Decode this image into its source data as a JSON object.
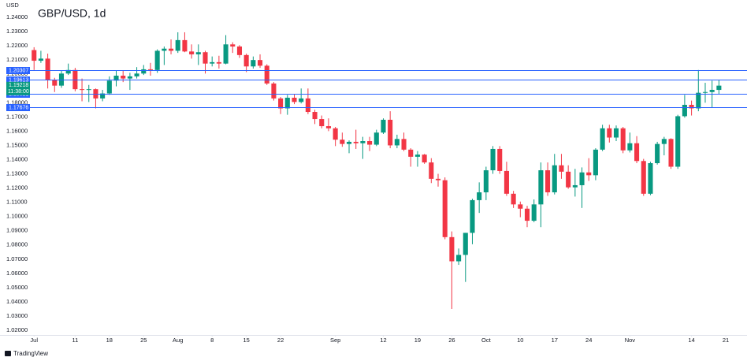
{
  "chart_data": {
    "type": "candlestick",
    "title": "GBP/USD, 1d",
    "y_unit": "USD",
    "brand": "TradingView",
    "up_color": "#089981",
    "down_color": "#f23645",
    "line_color": "#2962ff",
    "ylim": [
      1.0167,
      1.2522
    ],
    "yticks": [
      {
        "value": 1.24,
        "label": "1.24000"
      },
      {
        "value": 1.23,
        "label": "1.23000"
      },
      {
        "value": 1.22,
        "label": "1.22000"
      },
      {
        "value": 1.21,
        "label": "1.21000"
      },
      {
        "value": 1.2,
        "label": "1.20000"
      },
      {
        "value": 1.19,
        "label": "1.19000"
      },
      {
        "value": 1.18,
        "label": "1.18000"
      },
      {
        "value": 1.17,
        "label": "1.17000"
      },
      {
        "value": 1.16,
        "label": "1.16000"
      },
      {
        "value": 1.15,
        "label": "1.15000"
      },
      {
        "value": 1.14,
        "label": "1.14000"
      },
      {
        "value": 1.13,
        "label": "1.13000"
      },
      {
        "value": 1.12,
        "label": "1.12000"
      },
      {
        "value": 1.11,
        "label": "1.11000"
      },
      {
        "value": 1.1,
        "label": "1.10000"
      },
      {
        "value": 1.09,
        "label": "1.09000"
      },
      {
        "value": 1.08,
        "label": "1.08000"
      },
      {
        "value": 1.07,
        "label": "1.07000"
      },
      {
        "value": 1.06,
        "label": "1.06000"
      },
      {
        "value": 1.05,
        "label": "1.05000"
      },
      {
        "value": 1.04,
        "label": "1.04000"
      },
      {
        "value": 1.03,
        "label": "1.03000"
      },
      {
        "value": 1.02,
        "label": "1.02000"
      }
    ],
    "xlim": [
      -0.6,
      104.1
    ],
    "xticks": [
      {
        "value": 0,
        "label": "Jul"
      },
      {
        "value": 6,
        "label": "11"
      },
      {
        "value": 11,
        "label": "18"
      },
      {
        "value": 16,
        "label": "25"
      },
      {
        "value": 21,
        "label": "Aug"
      },
      {
        "value": 26,
        "label": "8"
      },
      {
        "value": 31,
        "label": "15"
      },
      {
        "value": 36,
        "label": "22"
      },
      {
        "value": 44,
        "label": "Sep"
      },
      {
        "value": 51,
        "label": "12"
      },
      {
        "value": 56,
        "label": "19"
      },
      {
        "value": 61,
        "label": "26"
      },
      {
        "value": 66,
        "label": "Oct"
      },
      {
        "value": 71,
        "label": "10"
      },
      {
        "value": 76,
        "label": "17"
      },
      {
        "value": 81,
        "label": "24"
      },
      {
        "value": 87,
        "label": "Nov"
      },
      {
        "value": 96,
        "label": "14"
      },
      {
        "value": 101,
        "label": "21"
      }
    ],
    "price_lines": [
      1.20307,
      1.19613,
      1.18621,
      1.17676
    ],
    "last_price": 1.19218,
    "countdown": "11:38:00",
    "open": [
      1.217,
      1.2095,
      1.211,
      1.196,
      1.192,
      1.2005,
      1.203,
      1.1895,
      1.189,
      1.1895,
      1.183,
      1.1865,
      1.1955,
      1.199,
      1.197,
      1.1985,
      1.2005,
      1.2035,
      1.203,
      1.2165,
      1.218,
      1.2165,
      1.224,
      1.216,
      1.214,
      1.2155,
      1.2075,
      1.2085,
      1.2075,
      1.221,
      1.2195,
      1.2135,
      1.2055,
      1.21,
      1.206,
      1.1935,
      1.183,
      1.176,
      1.1835,
      1.1805,
      1.183,
      1.1735,
      1.1685,
      1.1635,
      1.162,
      1.154,
      1.151,
      1.1525,
      1.1515,
      1.153,
      1.1505,
      1.159,
      1.168,
      1.15,
      1.1545,
      1.147,
      1.142,
      1.1435,
      1.138,
      1.1265,
      1.1255,
      1.0855,
      1.0685,
      1.073,
      1.0885,
      1.1115,
      1.117,
      1.1325,
      1.1475,
      1.132,
      1.116,
      1.1085,
      1.1055,
      1.097,
      1.1085,
      1.1325,
      1.117,
      1.136,
      1.1315,
      1.1205,
      1.122,
      1.131,
      1.129,
      1.147,
      1.162,
      1.1555,
      1.162,
      1.1465,
      1.1515,
      1.139,
      1.116,
      1.1375,
      1.151,
      1.1545,
      1.135,
      1.1705,
      1.1785,
      1.176,
      1.187,
      1.1875,
      1.189
    ],
    "high": [
      1.219,
      1.2165,
      1.2145,
      1.1975,
      1.2025,
      1.2075,
      1.2045,
      1.197,
      1.1925,
      1.19,
      1.189,
      1.1985,
      1.2025,
      1.2025,
      1.201,
      1.205,
      1.2065,
      1.208,
      1.2175,
      1.2195,
      1.2245,
      1.2295,
      1.2295,
      1.221,
      1.221,
      1.2165,
      1.2125,
      1.213,
      1.2275,
      1.2225,
      1.2205,
      1.2145,
      1.2125,
      1.214,
      1.207,
      1.1945,
      1.184,
      1.1855,
      1.186,
      1.19,
      1.19,
      1.175,
      1.171,
      1.169,
      1.163,
      1.159,
      1.1535,
      1.161,
      1.156,
      1.156,
      1.161,
      1.169,
      1.174,
      1.1575,
      1.159,
      1.148,
      1.146,
      1.144,
      1.141,
      1.13,
      1.1275,
      1.0895,
      1.0775,
      1.0885,
      1.1125,
      1.124,
      1.135,
      1.1495,
      1.1495,
      1.1385,
      1.118,
      1.1105,
      1.1075,
      1.112,
      1.138,
      1.138,
      1.144,
      1.144,
      1.136,
      1.1335,
      1.1345,
      1.141,
      1.148,
      1.1645,
      1.1645,
      1.164,
      1.163,
      1.159,
      1.1565,
      1.1405,
      1.1385,
      1.1525,
      1.156,
      1.155,
      1.1715,
      1.1855,
      1.1815,
      1.203,
      1.194,
      1.1955,
      1.196
    ],
    "low": [
      1.203,
      1.208,
      1.19,
      1.1875,
      1.1905,
      1.1995,
      1.188,
      1.181,
      1.1805,
      1.176,
      1.181,
      1.1855,
      1.1915,
      1.1945,
      1.189,
      1.197,
      1.1995,
      1.199,
      1.201,
      1.2065,
      1.214,
      1.215,
      1.2155,
      1.211,
      1.2065,
      1.2005,
      1.2055,
      1.204,
      1.207,
      1.215,
      1.2115,
      1.2015,
      1.204,
      1.2045,
      1.1925,
      1.1815,
      1.172,
      1.1715,
      1.179,
      1.1795,
      1.172,
      1.165,
      1.162,
      1.16,
      1.1495,
      1.149,
      1.1445,
      1.1475,
      1.1405,
      1.146,
      1.1495,
      1.158,
      1.148,
      1.148,
      1.146,
      1.135,
      1.135,
      1.137,
      1.1235,
      1.121,
      1.084,
      1.035,
      1.066,
      1.054,
      1.0805,
      1.1025,
      1.1115,
      1.13,
      1.13,
      1.1145,
      1.106,
      1.0995,
      1.0925,
      1.096,
      1.0925,
      1.1145,
      1.1155,
      1.1265,
      1.1195,
      1.114,
      1.106,
      1.125,
      1.1255,
      1.146,
      1.152,
      1.153,
      1.1445,
      1.145,
      1.1375,
      1.1145,
      1.115,
      1.1365,
      1.143,
      1.1335,
      1.1335,
      1.1695,
      1.171,
      1.174,
      1.18,
      1.1765,
      1.186
    ],
    "close": [
      1.2095,
      1.211,
      1.196,
      1.192,
      1.2005,
      1.203,
      1.1895,
      1.189,
      1.1895,
      1.183,
      1.1865,
      1.1955,
      1.199,
      1.197,
      1.1985,
      1.2005,
      1.2035,
      1.203,
      1.2165,
      1.218,
      1.2165,
      1.224,
      1.216,
      1.214,
      1.2155,
      1.2075,
      1.2085,
      1.2075,
      1.221,
      1.2195,
      1.2135,
      1.2055,
      1.21,
      1.206,
      1.1935,
      1.183,
      1.176,
      1.1835,
      1.1805,
      1.183,
      1.1735,
      1.1685,
      1.1635,
      1.162,
      1.154,
      1.151,
      1.1525,
      1.1515,
      1.153,
      1.1505,
      1.159,
      1.168,
      1.15,
      1.1545,
      1.147,
      1.142,
      1.1435,
      1.138,
      1.1265,
      1.1255,
      1.0855,
      1.0685,
      1.073,
      1.0885,
      1.1115,
      1.117,
      1.1325,
      1.1475,
      1.132,
      1.116,
      1.1085,
      1.1055,
      1.097,
      1.1085,
      1.1325,
      1.117,
      1.136,
      1.1315,
      1.1205,
      1.122,
      1.131,
      1.129,
      1.147,
      1.162,
      1.1555,
      1.162,
      1.1465,
      1.1515,
      1.139,
      1.116,
      1.1375,
      1.151,
      1.1545,
      1.135,
      1.1705,
      1.1785,
      1.176,
      1.187,
      1.1875,
      1.189,
      1.192
    ]
  }
}
